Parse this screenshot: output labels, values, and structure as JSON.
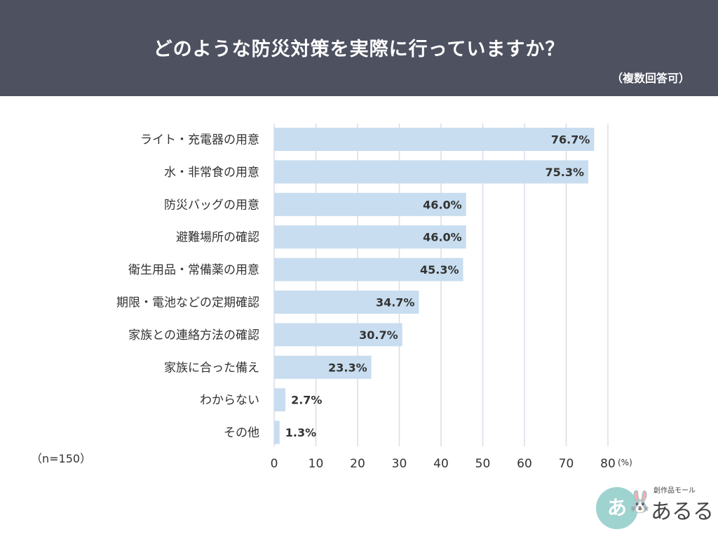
{
  "title": "どのような防災対策を実際に行っていますか？",
  "subtitle": "（複数回答可）",
  "note": "（n=150）",
  "logo": {
    "small_text": "創作品モール",
    "main_text": "あるる",
    "circle_text": "あ",
    "icon": "rabbit-icon"
  },
  "colors": {
    "header": "#4d5160",
    "bar": "#c8ddef",
    "grid": "#d9dde6"
  },
  "chart_data": {
    "type": "bar",
    "orientation": "horizontal",
    "categories": [
      "ライト・充電器の用意",
      "水・非常食の用意",
      "防災バッグの用意",
      "避難場所の確認",
      "衛生用品・常備薬の用意",
      "期限・電池などの定期確認",
      "家族との連絡方法の確認",
      "家族に合った備え",
      "わからない",
      "その他"
    ],
    "values": [
      76.7,
      75.3,
      46.0,
      46.0,
      45.3,
      34.7,
      30.7,
      23.3,
      2.7,
      1.3
    ],
    "value_labels": [
      "76.7%",
      "75.3%",
      "46.0%",
      "46.0%",
      "45.3%",
      "34.7%",
      "30.7%",
      "23.3%",
      "2.7%",
      "1.3%"
    ],
    "xticks": [
      "0",
      "10",
      "20",
      "30",
      "40",
      "50",
      "60",
      "70",
      "80"
    ],
    "xlim": [
      0,
      80
    ],
    "unit": "(%)",
    "grid": true
  }
}
